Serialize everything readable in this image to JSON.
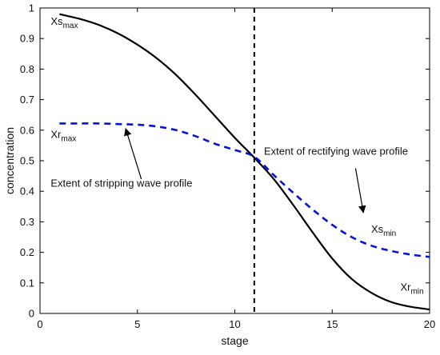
{
  "chart_data": {
    "type": "line",
    "xlabel": "stage",
    "ylabel": "concentration",
    "xlim": [
      0,
      20
    ],
    "ylim": [
      0,
      1
    ],
    "xticks": [
      0,
      5,
      10,
      15,
      20
    ],
    "xtick_labels": [
      "0",
      "5",
      "10",
      "15",
      "20"
    ],
    "yticks": [
      0,
      0.1,
      0.2,
      0.3,
      0.4,
      0.5,
      0.6,
      0.7,
      0.8,
      0.9,
      1
    ],
    "ytick_labels": [
      "0",
      "0.1",
      "0.2",
      "0.3",
      "0.4",
      "0.5",
      "0.6",
      "0.7",
      "0.8",
      "0.9",
      "1"
    ],
    "grid": false,
    "series": [
      {
        "id": "stripping",
        "style": "solid",
        "color": "#000000",
        "x": [
          1,
          2,
          3,
          4,
          5,
          6,
          7,
          8,
          9,
          10,
          11,
          12,
          13,
          14,
          15,
          16,
          17,
          18,
          19,
          20
        ],
        "y": [
          0.98,
          0.965,
          0.945,
          0.917,
          0.88,
          0.835,
          0.78,
          0.715,
          0.645,
          0.575,
          0.51,
          0.44,
          0.355,
          0.265,
          0.18,
          0.113,
          0.068,
          0.038,
          0.022,
          0.013
        ]
      },
      {
        "id": "rectifying",
        "style": "dashed",
        "color": "#0a14c8",
        "x": [
          1,
          2,
          3,
          4,
          5,
          6,
          7,
          8,
          9,
          10,
          11,
          12,
          13,
          14,
          15,
          16,
          17,
          18,
          19,
          20
        ],
        "y": [
          0.622,
          0.622,
          0.622,
          0.62,
          0.618,
          0.612,
          0.6,
          0.58,
          0.555,
          0.535,
          0.513,
          0.453,
          0.395,
          0.34,
          0.29,
          0.25,
          0.222,
          0.205,
          0.193,
          0.185
        ]
      }
    ],
    "vline": {
      "x": 11,
      "style": "dashed",
      "color": "#000000"
    },
    "annotations": [
      {
        "id": "xs-max",
        "text": "Xs",
        "sub": "max",
        "x": 0.55,
        "y": 0.945
      },
      {
        "id": "xr-max",
        "text": "Xr",
        "sub": "max",
        "x": 0.55,
        "y": 0.575
      },
      {
        "id": "xs-min",
        "text": "Xs",
        "sub": "min",
        "x": 17.0,
        "y": 0.265
      },
      {
        "id": "xr-min",
        "text": "Xr",
        "sub": "min",
        "x": 18.5,
        "y": 0.075
      },
      {
        "id": "stripping-label",
        "text": "Extent of stripping wave profile",
        "x": 0.55,
        "y": 0.415
      },
      {
        "id": "rectifying-label",
        "text": "Extent of rectifying wave profile",
        "x": 11.5,
        "y": 0.52
      }
    ],
    "arrows": [
      {
        "id": "stripping-arrow",
        "from": [
          5.2,
          0.44
        ],
        "to": [
          4.4,
          0.605
        ]
      },
      {
        "id": "rectifying-arrow",
        "from": [
          16.2,
          0.475
        ],
        "to": [
          16.6,
          0.33
        ]
      }
    ]
  }
}
